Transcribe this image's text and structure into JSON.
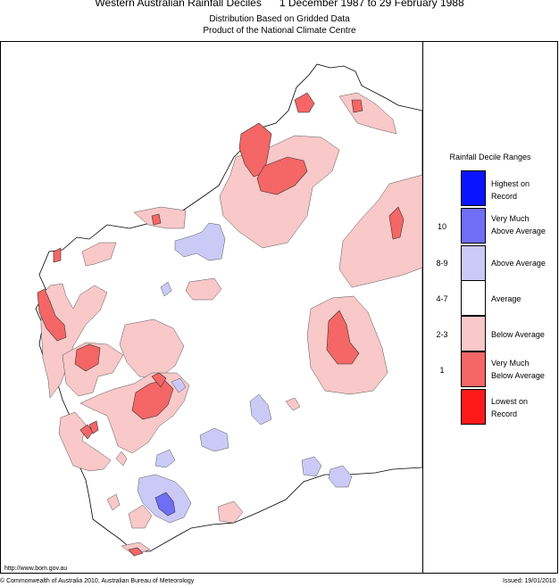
{
  "header": {
    "title": "Western Australian Rainfall Deciles      1 December 1987 to 29 February 1988",
    "subtitle1": "Distribution Based on Gridded Data",
    "subtitle2": "Product of the National Climate Centre"
  },
  "legend": {
    "title": "Rainfall Decile Ranges",
    "items": [
      {
        "label_l1": "Highest on",
        "label_l2": "Record",
        "range": "",
        "color": "#0a14ff"
      },
      {
        "label_l1": "Very Much",
        "label_l2": "Above Average",
        "range": "10",
        "color": "#6f6ef5"
      },
      {
        "label_l1": "Above Average",
        "label_l2": "",
        "range": "8-9",
        "color": "#cbcaf7"
      },
      {
        "label_l1": "Average",
        "label_l2": "",
        "range": "4-7",
        "color": "#ffffff"
      },
      {
        "label_l1": "Below Average",
        "label_l2": "",
        "range": "2-3",
        "color": "#f9c8c8"
      },
      {
        "label_l1": "Very Much",
        "label_l2": "Below Average",
        "range": "1",
        "color": "#f56666"
      },
      {
        "label_l1": "Lowest on",
        "label_l2": "Record",
        "range": "",
        "color": "#ff1a1a"
      }
    ]
  },
  "footer": {
    "url": "http://www.bom.gov.au",
    "copyright": "© Commonwealth of Australia 2010, Australian Bureau of Meteorology",
    "issued": "Issued: 19/01/2010"
  },
  "colors": {
    "land": "#ffffff",
    "below_average": "#f9c8c8",
    "very_much_below": "#f56666",
    "lowest": "#ff1a1a",
    "above_average": "#cbcaf7",
    "very_much_above": "#6f6ef5"
  }
}
